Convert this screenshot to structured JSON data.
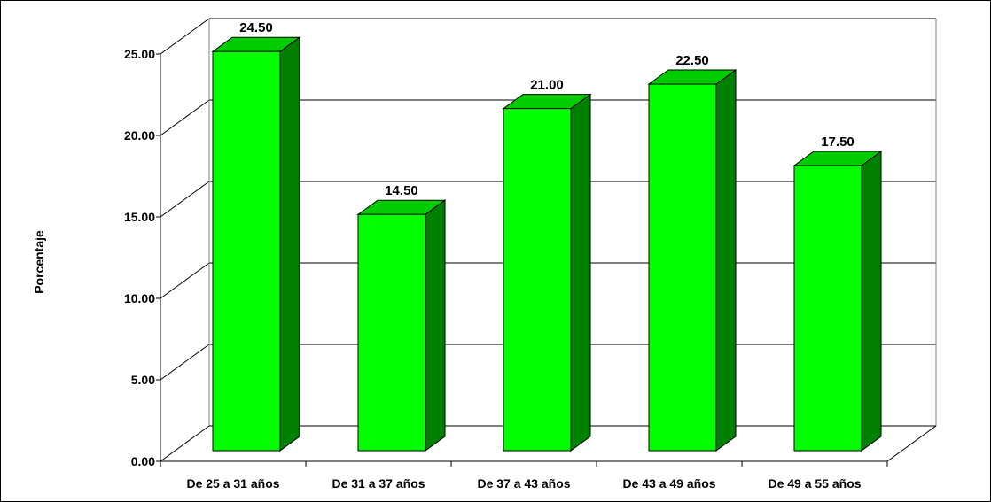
{
  "chart_data": {
    "type": "bar",
    "title": "",
    "xlabel": "",
    "ylabel": "Porcentaje",
    "categories": [
      "De 25 a 31 años",
      "De 31 a 37 años",
      "De 37 a 43 años",
      "De 43 a 49 años",
      "De 49 a 55 años"
    ],
    "values": [
      24.5,
      14.5,
      21.0,
      22.5,
      17.5
    ],
    "value_labels": [
      "24.50",
      "14.50",
      "21.00",
      "22.50",
      "17.50"
    ],
    "y_ticks": [
      "0.00",
      "5.00",
      "10.00",
      "15.00",
      "20.00",
      "25.00"
    ],
    "ylim": [
      0,
      25
    ],
    "grid": true,
    "legend": "none",
    "style": "3d-columns",
    "colors": {
      "front": "#00ff00",
      "top": "#00cc00",
      "side": "#008000",
      "grid": "#000000"
    }
  }
}
